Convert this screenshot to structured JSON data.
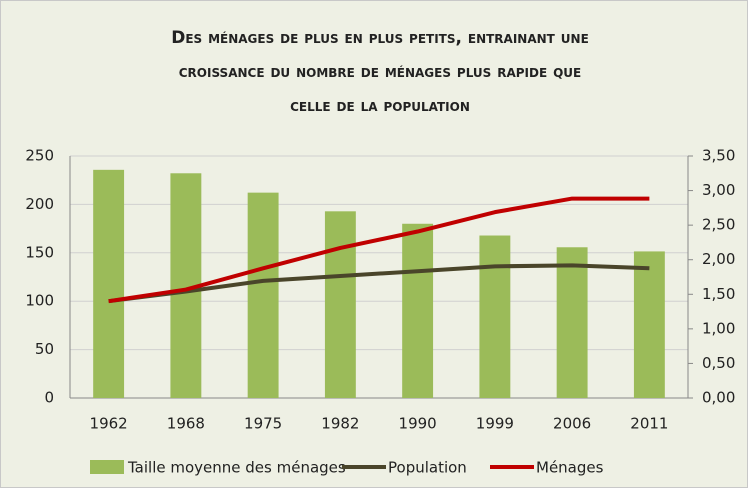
{
  "chart_data": {
    "type": "bar-line",
    "title": [
      "Des ménages de plus en plus petits, entrainant une",
      "croissance du nombre de ménages plus rapide que",
      "celle de la population"
    ],
    "categories": [
      "1962",
      "1968",
      "1975",
      "1982",
      "1990",
      "1999",
      "2006",
      "2011"
    ],
    "series": [
      {
        "name": "Taille moyenne des ménages",
        "type": "bar",
        "axis": "y2",
        "color": "#9bbb59",
        "values": [
          3.3,
          3.25,
          2.97,
          2.7,
          2.52,
          2.35,
          2.18,
          2.12
        ]
      },
      {
        "name": "Population",
        "type": "line",
        "color": "#4a452a",
        "values": [
          100,
          110,
          121,
          126,
          131,
          136,
          137,
          134
        ]
      },
      {
        "name": "Ménages",
        "type": "line",
        "color": "#c00000",
        "values": [
          100,
          112,
          134,
          155,
          172,
          192,
          206,
          206
        ]
      }
    ],
    "ylim": [
      0,
      250
    ],
    "yticks": [
      0,
      50,
      100,
      150,
      200,
      250
    ],
    "y2lim": [
      0,
      3.5
    ],
    "y2ticks": [
      {
        "value": 0,
        "label": "0,00"
      },
      {
        "value": 0.5,
        "label": "0,50"
      },
      {
        "value": 1,
        "label": "1,00"
      },
      {
        "value": 1.5,
        "label": "1,50"
      },
      {
        "value": 2,
        "label": "2,00"
      },
      {
        "value": 2.5,
        "label": "2,50"
      },
      {
        "value": 3,
        "label": "3,00"
      },
      {
        "value": 3.5,
        "label": "3,50"
      }
    ],
    "grid": true,
    "legend": "bottom"
  }
}
